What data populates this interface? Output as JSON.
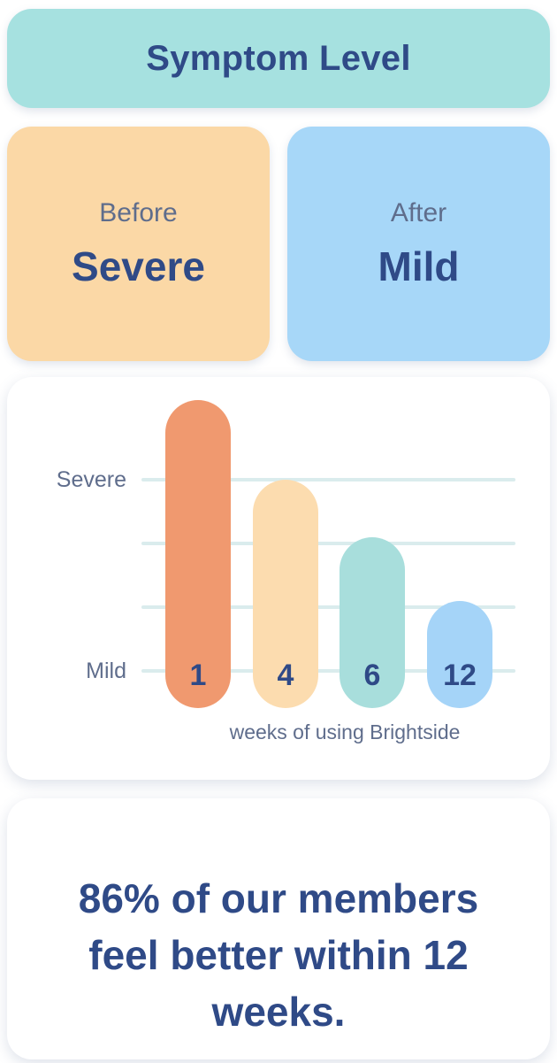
{
  "banner": {
    "title": "Symptom Level"
  },
  "comparison": {
    "before": {
      "label": "Before",
      "value": "Severe"
    },
    "after": {
      "label": "After",
      "value": "Mild"
    }
  },
  "chart_data": {
    "type": "bar",
    "title": "",
    "categories": [
      "1",
      "4",
      "6",
      "12"
    ],
    "values": [
      5.25,
      4.0,
      3.1,
      2.1
    ],
    "value_scale_note": "symptom severity in gridline units; Mild = 1 (bottom gridline), Severe = 4 (top gridline); bars decrease over weeks of treatment",
    "y_axis_labels": [
      "Severe",
      "Mild"
    ],
    "y_axis_tick_values": [
      4,
      3,
      2,
      1
    ],
    "xlabel": "weeks of using Brightside",
    "bar_colors": [
      "#F0996F",
      "#FCDCAF",
      "#A8DEDC",
      "#A5D4F8"
    ],
    "gridline_color": "#DAECED",
    "grid": true,
    "legend": "none"
  },
  "summary": {
    "text": "86% of our members feel better within 12 weeks.",
    "lines": [
      "86% of our members",
      "feel better within 12",
      "weeks."
    ]
  },
  "colors": {
    "banner_bg": "#A6E1E0",
    "before_card_bg": "#FBD8A6",
    "after_card_bg": "#A7D7F8",
    "white_card_bg": "#FFFFFF",
    "navy_text": "#2F4A87",
    "muted_text": "#5F6D8C"
  }
}
